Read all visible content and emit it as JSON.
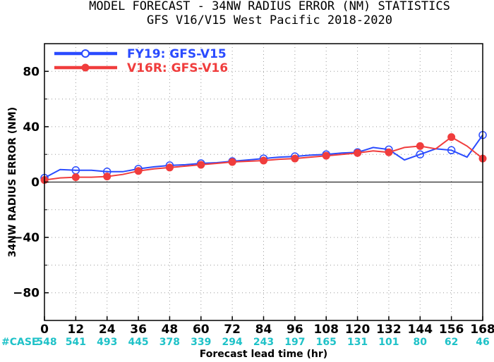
{
  "chart_data": {
    "type": "line",
    "title": "MODEL FORECAST - 34NW RADIUS ERROR (NM) STATISTICS",
    "subtitle": "GFS V16/V15 West Pacific 2018-2020",
    "xlabel": "Forecast lead time (hr)",
    "ylabel": "34NW RADIUS ERROR (NM)",
    "xlim": [
      0,
      168
    ],
    "ylim": [
      -100,
      100
    ],
    "x_ticks": [
      0,
      12,
      24,
      36,
      48,
      60,
      72,
      84,
      96,
      108,
      120,
      132,
      144,
      156,
      168
    ],
    "y_ticks": [
      -80,
      -40,
      0,
      40,
      80
    ],
    "grid": true,
    "legend_position": "top-left",
    "x": [
      0,
      6,
      12,
      18,
      24,
      30,
      36,
      42,
      48,
      54,
      60,
      66,
      72,
      78,
      84,
      90,
      96,
      102,
      108,
      114,
      120,
      126,
      132,
      138,
      144,
      150,
      156,
      162,
      168
    ],
    "marker_x": [
      0,
      12,
      24,
      36,
      48,
      60,
      72,
      84,
      96,
      108,
      120,
      132,
      144,
      156,
      168
    ],
    "series": [
      {
        "name": "FY19: GFS-V15",
        "color": "#2a4bff",
        "marker": "open-circle",
        "values": [
          3,
          9,
          8.5,
          8.5,
          7.5,
          7.5,
          9.5,
          11,
          12,
          12.5,
          13.5,
          14,
          15,
          16,
          17,
          18,
          18.5,
          19.5,
          20,
          21,
          21.5,
          25,
          23.5,
          16,
          20,
          24,
          23,
          18,
          34
        ]
      },
      {
        "name": "V16R: GFS-V16",
        "color": "#f03d3d",
        "marker": "filled-circle",
        "values": [
          1.5,
          3,
          3.5,
          3.5,
          4,
          5.5,
          8,
          9.5,
          10.5,
          11.5,
          12.5,
          13.5,
          14.5,
          15,
          15.5,
          16.5,
          17,
          18,
          19,
          20,
          21,
          22.5,
          21.5,
          25,
          26,
          24,
          32.5,
          26,
          17
        ]
      }
    ],
    "case_label": "#CASE",
    "case_counts": [
      548,
      541,
      493,
      445,
      378,
      339,
      294,
      243,
      197,
      165,
      131,
      101,
      80,
      62,
      46
    ]
  }
}
